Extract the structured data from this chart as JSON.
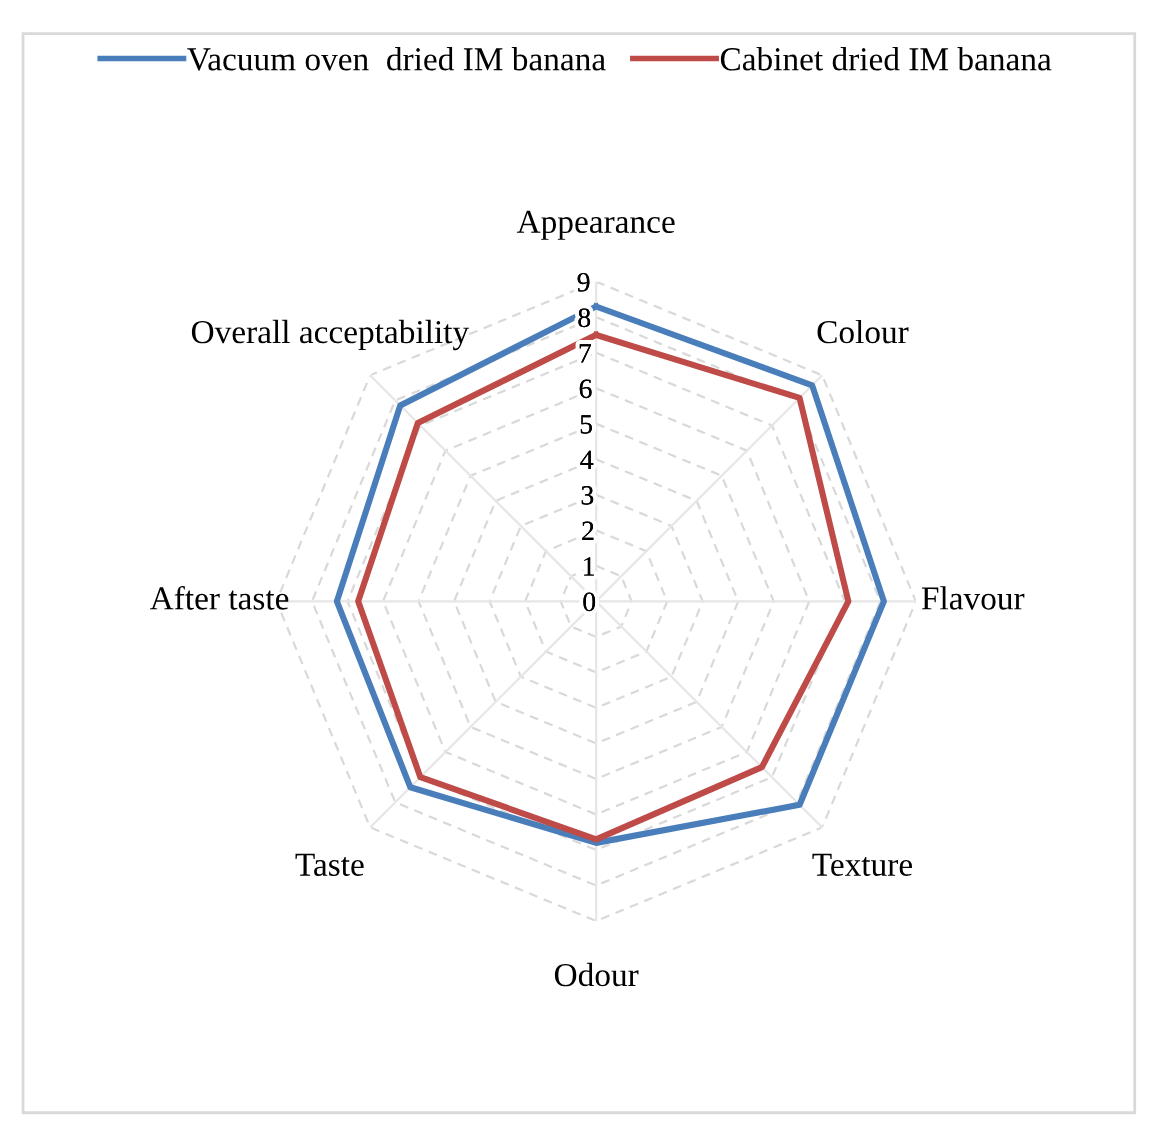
{
  "chart_data": {
    "type": "radar",
    "categories": [
      "Appearance",
      "Colour",
      "Flavour",
      "Texture",
      "Odour",
      "Taste",
      "After taste",
      "Overall acceptability"
    ],
    "series": [
      {
        "name": "Vacuum oven  dried IM banana",
        "color": "#4a7ebb",
        "values": [
          8.3,
          8.6,
          8.1,
          8.1,
          6.8,
          7.4,
          7.3,
          7.8
        ]
      },
      {
        "name": "Cabinet dried IM banana",
        "color": "#be4b48",
        "values": [
          7.5,
          8.1,
          7.1,
          6.6,
          6.7,
          7.0,
          6.7,
          7.1
        ]
      }
    ],
    "ylim": [
      0,
      9
    ],
    "yticks": [
      0,
      1,
      2,
      3,
      4,
      5,
      6,
      7,
      8,
      9
    ],
    "grid": true,
    "legend": "top",
    "marker": "none",
    "line_style": "solid"
  }
}
